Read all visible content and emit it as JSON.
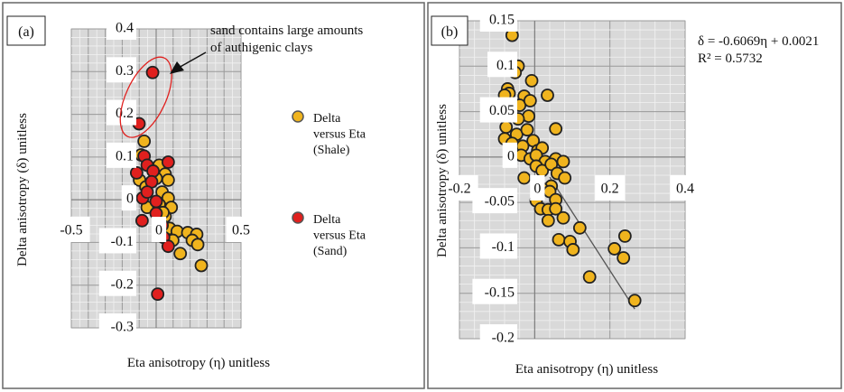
{
  "chart_data": [
    {
      "panel_label": "(a)",
      "type": "scatter",
      "xlabel": "Eta anisotropy (η) unitless",
      "ylabel": "Delta anisotropy (δ) unitless",
      "xlim": [
        -0.5,
        0.5
      ],
      "ylim": [
        -0.3,
        0.4
      ],
      "xticks": [
        "-0.5",
        "0",
        "0.5"
      ],
      "xtick_values": [
        -0.5,
        0,
        0.5
      ],
      "yticks": [
        "0.4",
        "0.3",
        "0.2",
        "0.1",
        "0",
        "-0.1",
        "-0.2",
        "-0.3"
      ],
      "ytick_values": [
        0.4,
        0.3,
        0.2,
        0.1,
        0,
        -0.1,
        -0.2,
        -0.3
      ],
      "grid": true,
      "legend_position": "right",
      "annotation": [
        "sand contains large amounts",
        "of authigenic clays"
      ],
      "series": [
        {
          "name": [
            "Delta",
            "versus Eta",
            "(Shale)"
          ],
          "color": "#f0b41e",
          "points": [
            [
              -0.071,
              0.137
            ],
            [
              -0.089,
              0.105
            ],
            [
              0.018,
              0.081
            ],
            [
              0.053,
              0.06
            ],
            [
              0.071,
              0.046
            ],
            [
              -0.098,
              0.046
            ],
            [
              0.035,
              0.018
            ],
            [
              0.071,
              0.004
            ],
            [
              0.089,
              -0.018
            ],
            [
              -0.053,
              -0.018
            ],
            [
              0.053,
              -0.039
            ],
            [
              0.08,
              -0.067
            ],
            [
              0.124,
              -0.074
            ],
            [
              0.186,
              -0.077
            ],
            [
              0.239,
              -0.081
            ],
            [
              0.213,
              -0.095
            ],
            [
              0.245,
              -0.105
            ],
            [
              0.142,
              -0.126
            ],
            [
              0.266,
              -0.154
            ],
            [
              0.098,
              -0.095
            ],
            [
              0.018,
              -0.011
            ],
            [
              -0.06,
              0.03
            ],
            [
              0.0,
              0.05
            ],
            [
              0.04,
              -0.03
            ]
          ]
        },
        {
          "name": [
            "Delta",
            "versus Eta",
            "(Sand)"
          ],
          "color": "#e0201e",
          "points": [
            [
              -0.021,
              0.298
            ],
            [
              -0.101,
              0.178
            ],
            [
              -0.071,
              0.102
            ],
            [
              0.071,
              0.088
            ],
            [
              -0.053,
              0.081
            ],
            [
              -0.115,
              0.063
            ],
            [
              -0.018,
              0.067
            ],
            [
              -0.027,
              0.042
            ],
            [
              -0.08,
              0.004
            ],
            [
              0.0,
              -0.004
            ],
            [
              -0.053,
              0.018
            ],
            [
              -0.083,
              -0.049
            ],
            [
              0.035,
              -0.06
            ],
            [
              0.044,
              -0.088
            ],
            [
              0.071,
              -0.109
            ],
            [
              0.009,
              -0.221
            ],
            [
              0.0,
              -0.032
            ]
          ]
        }
      ]
    },
    {
      "panel_label": "(b)",
      "type": "scatter",
      "xlabel": "Eta anisotropy (η) unitless",
      "ylabel": "Delta anisotropy (δ) unitless",
      "xlim": [
        -0.2,
        0.4
      ],
      "ylim": [
        -0.2,
        0.15
      ],
      "xticks": [
        "-0.2",
        "0",
        "0.2",
        "0.4"
      ],
      "xtick_values": [
        -0.2,
        0,
        0.2,
        0.4
      ],
      "yticks": [
        "0.15",
        "0.1",
        "0.05",
        "0",
        "-0.05",
        "-0.1",
        "-0.15",
        "-0.2"
      ],
      "ytick_values": [
        0.15,
        0.1,
        0.05,
        0,
        -0.05,
        -0.1,
        -0.15,
        -0.2
      ],
      "grid": true,
      "equation": "δ = -0.6069η + 0.0021",
      "r_squared": "R² = 0.5732",
      "trendline": {
        "slope": -0.6069,
        "intercept": 0.0021,
        "x_range": [
          0.04,
          0.266
        ]
      },
      "series": [
        {
          "color": "#f0b41e",
          "points": [
            [
              -0.06,
              0.134
            ],
            [
              -0.044,
              0.1
            ],
            [
              -0.052,
              0.093
            ],
            [
              -0.008,
              0.084
            ],
            [
              0.034,
              0.068
            ],
            [
              0.056,
              0.031
            ],
            [
              -0.072,
              0.075
            ],
            [
              -0.068,
              0.07
            ],
            [
              -0.08,
              0.068
            ],
            [
              -0.028,
              0.067
            ],
            [
              -0.04,
              0.057
            ],
            [
              -0.012,
              0.062
            ],
            [
              -0.016,
              0.045
            ],
            [
              -0.044,
              0.042
            ],
            [
              -0.076,
              0.033
            ],
            [
              -0.08,
              0.02
            ],
            [
              -0.048,
              0.025
            ],
            [
              -0.02,
              0.03
            ],
            [
              -0.004,
              0.018
            ],
            [
              -0.06,
              0.015
            ],
            [
              -0.032,
              0.012
            ],
            [
              0.008,
              0.007
            ],
            [
              0.02,
              0.01
            ],
            [
              -0.036,
              0.002
            ],
            [
              -0.012,
              -0.002
            ],
            [
              0.004,
              0.002
            ],
            [
              0.028,
              -0.005
            ],
            [
              0.056,
              -0.002
            ],
            [
              0.076,
              -0.005
            ],
            [
              -0.028,
              -0.023
            ],
            [
              0.004,
              -0.01
            ],
            [
              0.02,
              -0.015
            ],
            [
              0.044,
              -0.008
            ],
            [
              0.06,
              -0.018
            ],
            [
              0.08,
              -0.023
            ],
            [
              0.044,
              -0.032
            ],
            [
              0.02,
              -0.035
            ],
            [
              0.04,
              -0.038
            ],
            [
              0.056,
              -0.047
            ],
            [
              0.004,
              -0.048
            ],
            [
              0.016,
              -0.057
            ],
            [
              0.036,
              -0.058
            ],
            [
              0.056,
              -0.057
            ],
            [
              0.076,
              -0.067
            ],
            [
              0.036,
              -0.07
            ],
            [
              0.12,
              -0.078
            ],
            [
              0.064,
              -0.091
            ],
            [
              0.094,
              -0.093
            ],
            [
              0.102,
              -0.102
            ],
            [
              0.24,
              -0.087
            ],
            [
              0.212,
              -0.101
            ],
            [
              0.236,
              -0.111
            ],
            [
              0.146,
              -0.132
            ],
            [
              0.266,
              -0.158
            ]
          ]
        }
      ]
    }
  ]
}
